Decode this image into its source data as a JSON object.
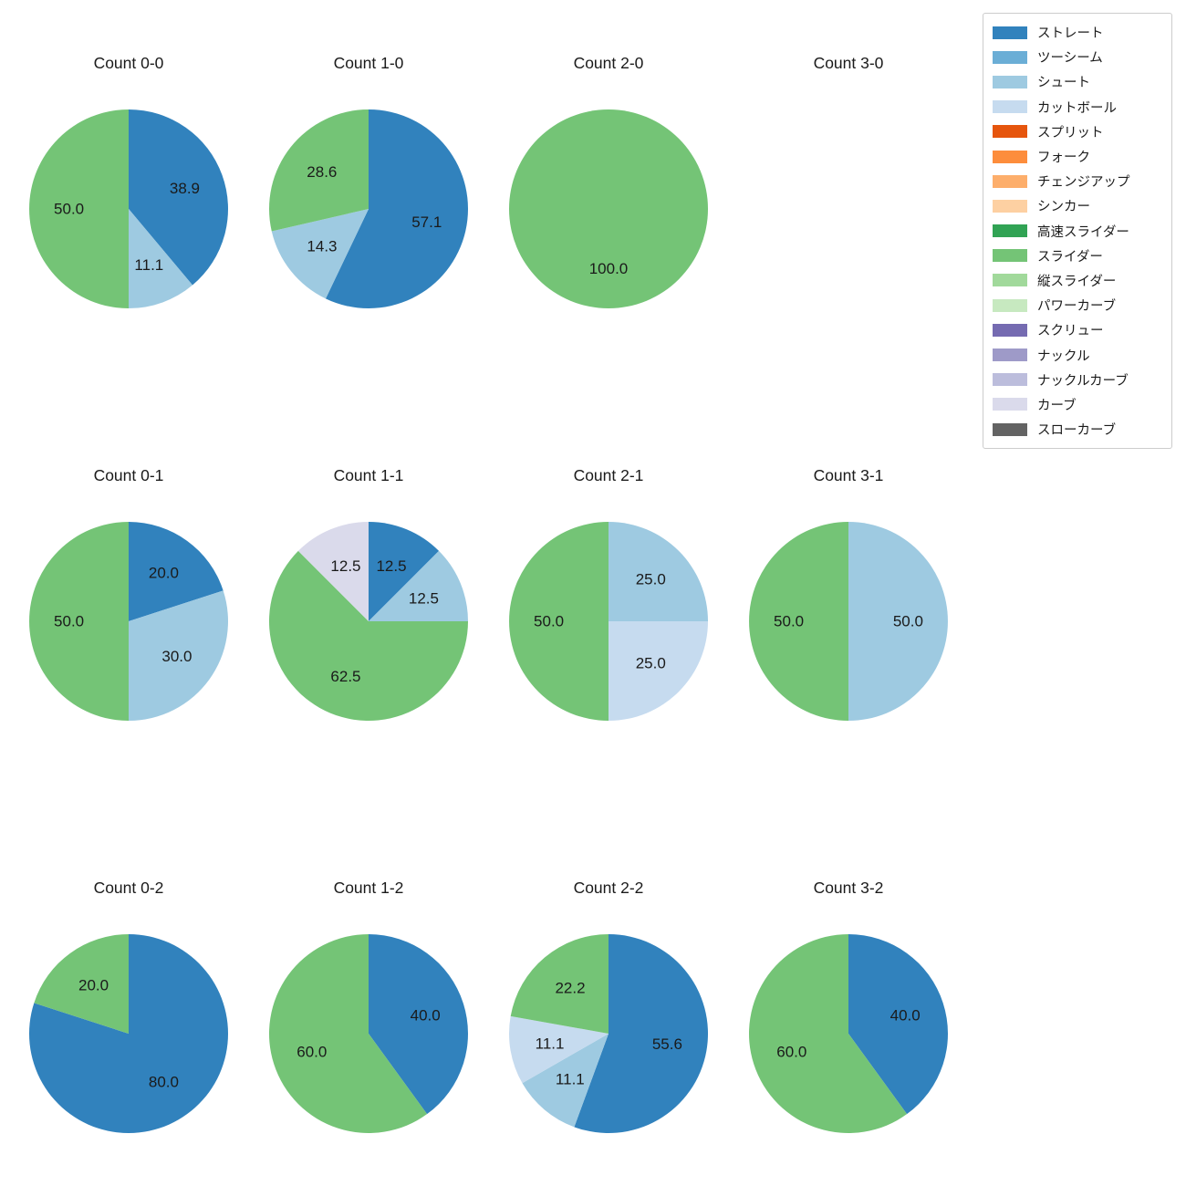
{
  "figure": {
    "background": "#ffffff",
    "grid": {
      "rows": 3,
      "cols": 4
    },
    "units": "percent"
  },
  "legend": {
    "position": "top-right",
    "border_color": "#cccccc",
    "items": [
      {
        "label": "ストレート",
        "color": "#3182bd"
      },
      {
        "label": "ツーシーム",
        "color": "#6baed6"
      },
      {
        "label": "シュート",
        "color": "#9ecae1"
      },
      {
        "label": "カットボール",
        "color": "#c6dbef"
      },
      {
        "label": "スプリット",
        "color": "#e6550d"
      },
      {
        "label": "フォーク",
        "color": "#fd8d3c"
      },
      {
        "label": "チェンジアップ",
        "color": "#fdae6b"
      },
      {
        "label": "シンカー",
        "color": "#fdd0a2"
      },
      {
        "label": "高速スライダー",
        "color": "#31a354"
      },
      {
        "label": "スライダー",
        "color": "#74c476"
      },
      {
        "label": "縦スライダー",
        "color": "#a1d99b"
      },
      {
        "label": "パワーカーブ",
        "color": "#c7e9c0"
      },
      {
        "label": "スクリュー",
        "color": "#756bb1"
      },
      {
        "label": "ナックル",
        "color": "#9e9ac8"
      },
      {
        "label": "ナックルカーブ",
        "color": "#bcbddc"
      },
      {
        "label": "カーブ",
        "color": "#dadaeb"
      },
      {
        "label": "スローカーブ",
        "color": "#636363"
      }
    ]
  },
  "chart_data": [
    {
      "type": "pie",
      "title": "Count 0-0",
      "start_angle_deg": 90,
      "direction": "clockwise",
      "pct_distance": 0.6,
      "slices": [
        {
          "label": "ストレート",
          "value": 38.9,
          "value_label": "38.9",
          "color": "#3182bd"
        },
        {
          "label": "シュート",
          "value": 11.1,
          "value_label": "11.1",
          "color": "#9ecae1"
        },
        {
          "label": "スライダー",
          "value": 50.0,
          "value_label": "50.0",
          "color": "#74c476"
        }
      ]
    },
    {
      "type": "pie",
      "title": "Count 1-0",
      "start_angle_deg": 90,
      "direction": "clockwise",
      "pct_distance": 0.6,
      "slices": [
        {
          "label": "ストレート",
          "value": 57.1,
          "value_label": "57.1",
          "color": "#3182bd"
        },
        {
          "label": "シュート",
          "value": 14.3,
          "value_label": "14.3",
          "color": "#9ecae1"
        },
        {
          "label": "スライダー",
          "value": 28.6,
          "value_label": "28.6",
          "color": "#74c476"
        }
      ]
    },
    {
      "type": "pie",
      "title": "Count 2-0",
      "start_angle_deg": 90,
      "direction": "clockwise",
      "pct_distance": 0.6,
      "slices": [
        {
          "label": "スライダー",
          "value": 100.0,
          "value_label": "100.0",
          "color": "#74c476"
        }
      ]
    },
    {
      "type": "pie",
      "title": "Count 3-0",
      "start_angle_deg": 90,
      "direction": "clockwise",
      "pct_distance": 0.6,
      "slices": []
    },
    {
      "type": "pie",
      "title": "Count 0-1",
      "start_angle_deg": 90,
      "direction": "clockwise",
      "pct_distance": 0.6,
      "slices": [
        {
          "label": "ストレート",
          "value": 20.0,
          "value_label": "20.0",
          "color": "#3182bd"
        },
        {
          "label": "シュート",
          "value": 30.0,
          "value_label": "30.0",
          "color": "#9ecae1"
        },
        {
          "label": "スライダー",
          "value": 50.0,
          "value_label": "50.0",
          "color": "#74c476"
        }
      ]
    },
    {
      "type": "pie",
      "title": "Count 1-1",
      "start_angle_deg": 90,
      "direction": "clockwise",
      "pct_distance": 0.6,
      "slices": [
        {
          "label": "ストレート",
          "value": 12.5,
          "value_label": "12.5",
          "color": "#3182bd"
        },
        {
          "label": "シュート",
          "value": 12.5,
          "value_label": "12.5",
          "color": "#9ecae1"
        },
        {
          "label": "スライダー",
          "value": 62.5,
          "value_label": "62.5",
          "color": "#74c476"
        },
        {
          "label": "カーブ",
          "value": 12.5,
          "value_label": "12.5",
          "color": "#dadaeb"
        }
      ]
    },
    {
      "type": "pie",
      "title": "Count 2-1",
      "start_angle_deg": 90,
      "direction": "clockwise",
      "pct_distance": 0.6,
      "slices": [
        {
          "label": "シュート",
          "value": 25.0,
          "value_label": "25.0",
          "color": "#9ecae1"
        },
        {
          "label": "カットボール",
          "value": 25.0,
          "value_label": "25.0",
          "color": "#c6dbef"
        },
        {
          "label": "スライダー",
          "value": 50.0,
          "value_label": "50.0",
          "color": "#74c476"
        }
      ]
    },
    {
      "type": "pie",
      "title": "Count 3-1",
      "start_angle_deg": 90,
      "direction": "clockwise",
      "pct_distance": 0.6,
      "slices": [
        {
          "label": "シュート",
          "value": 50.0,
          "value_label": "50.0",
          "color": "#9ecae1"
        },
        {
          "label": "スライダー",
          "value": 50.0,
          "value_label": "50.0",
          "color": "#74c476"
        }
      ]
    },
    {
      "type": "pie",
      "title": "Count 0-2",
      "start_angle_deg": 90,
      "direction": "clockwise",
      "pct_distance": 0.6,
      "slices": [
        {
          "label": "ストレート",
          "value": 80.0,
          "value_label": "80.0",
          "color": "#3182bd"
        },
        {
          "label": "スライダー",
          "value": 20.0,
          "value_label": "20.0",
          "color": "#74c476"
        }
      ]
    },
    {
      "type": "pie",
      "title": "Count 1-2",
      "start_angle_deg": 90,
      "direction": "clockwise",
      "pct_distance": 0.6,
      "slices": [
        {
          "label": "ストレート",
          "value": 40.0,
          "value_label": "40.0",
          "color": "#3182bd"
        },
        {
          "label": "スライダー",
          "value": 60.0,
          "value_label": "60.0",
          "color": "#74c476"
        }
      ]
    },
    {
      "type": "pie",
      "title": "Count 2-2",
      "start_angle_deg": 90,
      "direction": "clockwise",
      "pct_distance": 0.6,
      "slices": [
        {
          "label": "ストレート",
          "value": 55.6,
          "value_label": "55.6",
          "color": "#3182bd"
        },
        {
          "label": "シュート",
          "value": 11.1,
          "value_label": "11.1",
          "color": "#9ecae1"
        },
        {
          "label": "カットボール",
          "value": 11.1,
          "value_label": "11.1",
          "color": "#c6dbef"
        },
        {
          "label": "スライダー",
          "value": 22.2,
          "value_label": "22.2",
          "color": "#74c476"
        }
      ]
    },
    {
      "type": "pie",
      "title": "Count 3-2",
      "start_angle_deg": 90,
      "direction": "clockwise",
      "pct_distance": 0.6,
      "slices": [
        {
          "label": "ストレート",
          "value": 40.0,
          "value_label": "40.0",
          "color": "#3182bd"
        },
        {
          "label": "スライダー",
          "value": 60.0,
          "value_label": "60.0",
          "color": "#74c476"
        }
      ]
    }
  ]
}
